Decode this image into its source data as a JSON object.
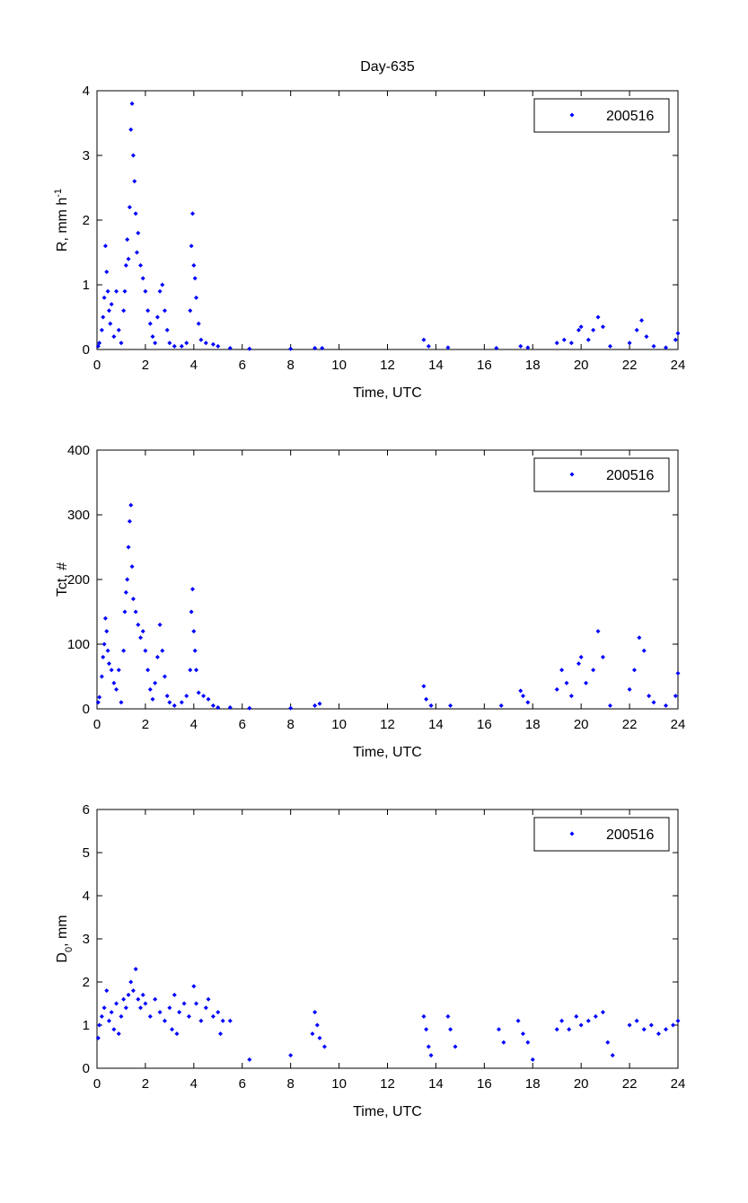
{
  "chart_data": [
    {
      "type": "scatter",
      "title": "Day-635",
      "xlabel": "Time, UTC",
      "ylabel": [
        {
          "text": "R, mm h"
        },
        {
          "text": "-1",
          "shift": "super"
        }
      ],
      "xlim": [
        0,
        24
      ],
      "xticks": [
        0,
        2,
        4,
        6,
        8,
        10,
        12,
        14,
        16,
        18,
        20,
        22,
        24
      ],
      "ylim": [
        0,
        4
      ],
      "yticks": [
        0,
        1,
        2,
        3,
        4
      ],
      "legend": "upper right",
      "series": [
        {
          "name": "200516",
          "color": "#0000ff",
          "x": [
            0.05,
            0.1,
            0.2,
            0.25,
            0.3,
            0.35,
            0.4,
            0.45,
            0.5,
            0.55,
            0.6,
            0.7,
            0.8,
            0.9,
            1.0,
            1.1,
            1.15,
            1.2,
            1.25,
            1.3,
            1.35,
            1.4,
            1.45,
            1.5,
            1.55,
            1.6,
            1.65,
            1.7,
            1.8,
            1.9,
            2.0,
            2.1,
            2.2,
            2.3,
            2.4,
            2.5,
            2.6,
            2.7,
            2.8,
            2.9,
            3.0,
            3.2,
            3.5,
            3.7,
            3.85,
            3.9,
            3.95,
            4.0,
            4.05,
            4.1,
            4.2,
            4.3,
            4.5,
            4.8,
            5.0,
            5.5,
            6.3,
            8.0,
            9.0,
            9.3,
            13.5,
            13.7,
            14.5,
            16.5,
            17.5,
            17.8,
            19.0,
            19.3,
            19.6,
            19.9,
            20.0,
            20.3,
            20.5,
            20.7,
            20.9,
            21.2,
            22.0,
            22.3,
            22.5,
            22.7,
            23.0,
            23.5,
            23.9,
            24.0
          ],
          "values": [
            0.05,
            0.1,
            0.3,
            0.5,
            0.8,
            1.6,
            1.2,
            0.9,
            0.6,
            0.4,
            0.7,
            0.2,
            0.9,
            0.3,
            0.1,
            0.6,
            0.9,
            1.3,
            1.7,
            1.4,
            2.2,
            3.4,
            3.8,
            3.0,
            2.6,
            2.1,
            1.5,
            1.8,
            1.3,
            1.1,
            0.9,
            0.6,
            0.4,
            0.2,
            0.1,
            0.5,
            0.9,
            1.0,
            0.6,
            0.3,
            0.1,
            0.05,
            0.05,
            0.1,
            0.6,
            1.6,
            2.1,
            1.3,
            1.1,
            0.8,
            0.4,
            0.15,
            0.1,
            0.08,
            0.05,
            0.02,
            0.01,
            0.01,
            0.02,
            0.02,
            0.15,
            0.05,
            0.03,
            0.02,
            0.05,
            0.03,
            0.1,
            0.15,
            0.1,
            0.3,
            0.35,
            0.15,
            0.3,
            0.5,
            0.35,
            0.05,
            0.1,
            0.3,
            0.45,
            0.2,
            0.05,
            0.03,
            0.15,
            0.25
          ]
        }
      ]
    },
    {
      "type": "scatter",
      "xlabel": "Time, UTC",
      "ylabel": [
        {
          "text": "Tct, #"
        }
      ],
      "xlim": [
        0,
        24
      ],
      "xticks": [
        0,
        2,
        4,
        6,
        8,
        10,
        12,
        14,
        16,
        18,
        20,
        22,
        24
      ],
      "ylim": [
        0,
        400
      ],
      "yticks": [
        0,
        100,
        200,
        300,
        400
      ],
      "legend": "upper right",
      "series": [
        {
          "name": "200516",
          "color": "#0000ff",
          "x": [
            0.05,
            0.1,
            0.2,
            0.25,
            0.3,
            0.35,
            0.4,
            0.45,
            0.5,
            0.6,
            0.7,
            0.8,
            0.9,
            1.0,
            1.1,
            1.15,
            1.2,
            1.25,
            1.3,
            1.35,
            1.4,
            1.45,
            1.5,
            1.6,
            1.7,
            1.8,
            1.9,
            2.0,
            2.1,
            2.2,
            2.3,
            2.4,
            2.5,
            2.6,
            2.7,
            2.8,
            2.9,
            3.0,
            3.2,
            3.5,
            3.7,
            3.85,
            3.9,
            3.95,
            4.0,
            4.05,
            4.1,
            4.2,
            4.4,
            4.6,
            4.8,
            5.0,
            5.5,
            6.3,
            8.0,
            9.0,
            9.2,
            13.5,
            13.6,
            13.8,
            14.6,
            16.7,
            17.5,
            17.6,
            17.8,
            19.0,
            19.2,
            19.4,
            19.6,
            19.9,
            20.0,
            20.2,
            20.5,
            20.7,
            20.9,
            21.2,
            22.0,
            22.2,
            22.4,
            22.6,
            22.8,
            23.0,
            23.5,
            23.9,
            24.0
          ],
          "values": [
            10,
            18,
            50,
            80,
            100,
            140,
            120,
            90,
            70,
            60,
            40,
            30,
            60,
            10,
            90,
            150,
            180,
            200,
            250,
            290,
            315,
            220,
            170,
            150,
            130,
            110,
            120,
            90,
            60,
            30,
            15,
            40,
            80,
            130,
            90,
            50,
            20,
            10,
            5,
            10,
            20,
            60,
            150,
            185,
            120,
            90,
            60,
            25,
            20,
            15,
            5,
            2,
            2,
            1,
            1,
            5,
            8,
            35,
            15,
            5,
            5,
            5,
            28,
            20,
            10,
            30,
            60,
            40,
            20,
            70,
            80,
            40,
            60,
            120,
            80,
            5,
            30,
            60,
            110,
            90,
            20,
            10,
            5,
            20,
            55
          ]
        }
      ]
    },
    {
      "type": "scatter",
      "xlabel": "Time, UTC",
      "ylabel": [
        {
          "text": "D"
        },
        {
          "text": "0",
          "shift": "sub"
        },
        {
          "text": ", mm"
        }
      ],
      "xlim": [
        0,
        24
      ],
      "xticks": [
        0,
        2,
        4,
        6,
        8,
        10,
        12,
        14,
        16,
        18,
        20,
        22,
        24
      ],
      "ylim": [
        0,
        6
      ],
      "yticks": [
        0,
        1,
        2,
        3,
        4,
        5,
        6
      ],
      "legend": "upper right",
      "series": [
        {
          "name": "200516",
          "color": "#0000ff",
          "x": [
            0.05,
            0.1,
            0.2,
            0.3,
            0.4,
            0.5,
            0.6,
            0.7,
            0.8,
            0.9,
            1.0,
            1.1,
            1.2,
            1.3,
            1.4,
            1.5,
            1.6,
            1.7,
            1.8,
            1.9,
            2.0,
            2.2,
            2.4,
            2.6,
            2.8,
            3.0,
            3.1,
            3.2,
            3.3,
            3.4,
            3.6,
            3.8,
            4.0,
            4.1,
            4.3,
            4.5,
            4.6,
            4.8,
            5.0,
            5.1,
            5.2,
            5.5,
            6.3,
            8.0,
            8.9,
            9.0,
            9.1,
            9.2,
            9.4,
            13.5,
            13.6,
            13.7,
            13.8,
            14.5,
            14.6,
            14.8,
            16.6,
            16.8,
            17.4,
            17.6,
            17.8,
            18.0,
            19.0,
            19.2,
            19.5,
            19.8,
            20.0,
            20.3,
            20.6,
            20.9,
            21.1,
            21.3,
            22.0,
            22.3,
            22.6,
            22.9,
            23.2,
            23.5,
            23.8,
            24.0
          ],
          "values": [
            0.7,
            1.0,
            1.2,
            1.4,
            1.8,
            1.1,
            1.3,
            0.9,
            1.5,
            0.8,
            1.2,
            1.6,
            1.4,
            1.7,
            2.0,
            1.8,
            2.3,
            1.6,
            1.4,
            1.7,
            1.5,
            1.2,
            1.6,
            1.3,
            1.1,
            1.4,
            0.9,
            1.7,
            0.8,
            1.3,
            1.5,
            1.2,
            1.9,
            1.5,
            1.1,
            1.4,
            1.6,
            1.2,
            1.3,
            0.8,
            1.1,
            1.1,
            0.2,
            0.3,
            0.8,
            1.3,
            1.0,
            0.7,
            0.5,
            1.2,
            0.9,
            0.5,
            0.3,
            1.2,
            0.9,
            0.5,
            0.9,
            0.6,
            1.1,
            0.8,
            0.6,
            0.2,
            0.9,
            1.1,
            0.9,
            1.2,
            1.0,
            1.1,
            1.2,
            1.3,
            0.6,
            0.3,
            1.0,
            1.1,
            0.9,
            1.0,
            0.8,
            0.9,
            1.0,
            1.1
          ]
        }
      ]
    }
  ]
}
